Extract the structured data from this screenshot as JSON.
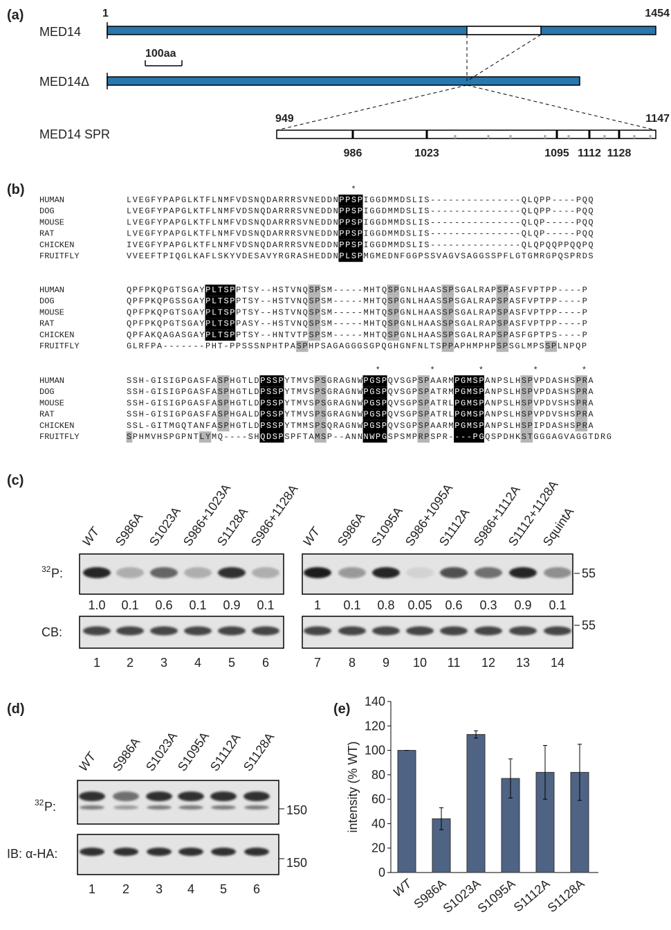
{
  "panel_a": {
    "label": "(a)",
    "full_name": "MED14",
    "full_start": "1",
    "full_end": "1454",
    "scale": "100aa",
    "delta_name": "MED14Δ",
    "spr_name": "MED14 SPR",
    "spr_start": "949",
    "spr_end": "1147",
    "sites": [
      "986",
      "1023",
      "1095",
      "1112",
      "1128"
    ]
  },
  "panel_b": {
    "label": "(b)",
    "blocks": [
      {
        "stars": "                                     *",
        "rows": [
          {
            "species": "HUMAN",
            "seq": "LVEGFYPAPGLKTFLNMFVDSNQDARRRSVNEDDNPPSPIGGDMMDSLIS---------------QLQPP----PQQ"
          },
          {
            "species": "DOG",
            "seq": "LVEGFYPAPGLKTFLNMFVDSNQDARRRSVNEDDNPPSPIGGDMMDSLIS---------------QLQPP----PQQ"
          },
          {
            "species": "MOUSE",
            "seq": "LVEGFYPAPGLKTFLNMFVDSNQDARRRSVNEDDNPPSPIGGDMMDSLIS---------------QLQP-----PQQ"
          },
          {
            "species": "RAT",
            "seq": "LVEGFYPAPGLKTFLNMFVDSNQDARRRSVNEDDNPPSPIGGDMMDSLIS---------------QLQP-----PQQ"
          },
          {
            "species": "CHICKEN",
            "seq": "IVEGFYPAPGLKTFLNMFVDSNQDARRRSVNEDDNPPSPIGGDMMDSLIS---------------QLQPQQPPQQPQ"
          },
          {
            "species": "FRUITFLY",
            "seq": "VVEEFTPIQGLKAFLSKYVDESAVYRGRASHEDDNPLSPMGMEDNFGGPSSVAGVSAGGSSPFLGTGMRGPQSPRDS"
          }
        ]
      },
      {
        "rows": [
          {
            "species": "HUMAN",
            "seq": "QPFPKQPGTSGAYPLTSPPTSY--HSTVNQSPSM-----MHTQSPGNLHAASSPSGALRAPSPASFVPTPP----P"
          },
          {
            "species": "DOG",
            "seq": "QPFPKQPGSSGAYPLTSPPTSY--HSTVNQSPSM-----MHTQSPGNLHAASSPSGALRAPSPASFVPTPP----P"
          },
          {
            "species": "MOUSE",
            "seq": "QPFPKQPGTSGAYPLTSPPTSY--HSTVNQSPSM-----MHTQSPGNLHAASSPSGALRAPSPASFVPTPP----P"
          },
          {
            "species": "RAT",
            "seq": "QPFPKQPGTSGAYPLTSPPASY--HSTVNQSPSM-----MHTQSPGNLHAASSPSGALRAPSPASFVPTPP----P"
          },
          {
            "species": "CHICKEN",
            "seq": "QPFAKQAGASGAYPLTSPPTSY--HNTVTPSPSM-----MHTQSPGNLHAASSPSGALRAPSPASFGPTPS----P"
          },
          {
            "species": "FRUITFLY",
            "seq": "GLRFPA-------PHT-PPSSSNPHTPASPHPSAGAGGGSGPQGHGNFNLTSPPAPHMPHPSPSGLMPSSPLNPQP"
          }
        ]
      },
      {
        "stars": "                                         *        *       *        *       *",
        "rows": [
          {
            "species": "HUMAN",
            "seq": "SSH-GISIGPGASFASPHGTLDPSSPYTMVSPSGRAGNWPGSPQVSGPSPAARMPGMSPANPSLHSPVPDASHSPRA"
          },
          {
            "species": "DOG",
            "seq": "SSH-GISIGPGASFASPHGTLDPSSPYTMVSPSGRAGNWPGSPQVSGPSPATRMPGMSPANPSLHSPVPDASHSPRA"
          },
          {
            "species": "MOUSE",
            "seq": "SSH-GISIGPGASFASPHGTLDPSSPYTMVSPSGRAGNWPGSPQVSGPSPATRLPGMSPANPSLHSPVPDVSHSPRA"
          },
          {
            "species": "RAT",
            "seq": "SSH-GISIGPGASFASPHGALDPSSPYTMVSPSGRAGNWPGSPQVSGPSPATRLPGMSPANPSLHSPVPDVSHSPRA"
          },
          {
            "species": "CHICKEN",
            "seq": "SSL-GITMGQTANFASPHGTLDPSSPYTMMSPSQRAGNWPGSPQVSGPSPAARMPGMSPANPSLHSPIPDASHSPRA"
          },
          {
            "species": "FRUITFLY",
            "seq": "SPHMVHSPGPNTLYMQ----SHQDSPSPFTAMSP--ANNNWPGSPSMPRPSPR----PGQSPDHKSTGGGAGVAGGTDRG"
          }
        ]
      }
    ]
  },
  "panel_c": {
    "label": "(c)",
    "p32_sup": "32",
    "p32": "P:",
    "cb": "CB:",
    "marker": "55",
    "lanes": [
      "WT",
      "S986A",
      "S1023A",
      "S986+1023A",
      "S1128A",
      "S986+1128A",
      "WT",
      "S986A",
      "S1095A",
      "S986+1095A",
      "S1112A",
      "S986+1112A",
      "S1112+1128A",
      "SquintA"
    ],
    "quant": [
      "1.0",
      "0.1",
      "0.6",
      "0.1",
      "0.9",
      "0.1",
      "1",
      "0.1",
      "0.8",
      "0.05",
      "0.6",
      "0.3",
      "0.9",
      "0.1"
    ],
    "numbers": [
      "1",
      "2",
      "3",
      "4",
      "5",
      "6",
      "7",
      "8",
      "9",
      "10",
      "11",
      "12",
      "13",
      "14"
    ]
  },
  "panel_d": {
    "label": "(d)",
    "p32_sup": "32",
    "p32": "P:",
    "ib": "IB: α-HA:",
    "marker": "150",
    "lanes": [
      "WT",
      "S986A",
      "S1023A",
      "S1095A",
      "S1112A",
      "S1128A"
    ],
    "numbers": [
      "1",
      "2",
      "3",
      "4",
      "5",
      "6"
    ]
  },
  "panel_e_label": "(e)",
  "chart_data": {
    "type": "bar",
    "y_label": "intensity (% WT)",
    "color": "#4f6384",
    "categories": [
      "WT",
      "S986A",
      "S1023A",
      "S1095A",
      "S1112A",
      "S1128A"
    ],
    "values": [
      100,
      44,
      113,
      77,
      82,
      82
    ],
    "errors": [
      0,
      9,
      3,
      16,
      22,
      23
    ],
    "ylim": [
      0,
      140
    ],
    "yticks": [
      0,
      20,
      40,
      60,
      80,
      100,
      120,
      140
    ]
  }
}
